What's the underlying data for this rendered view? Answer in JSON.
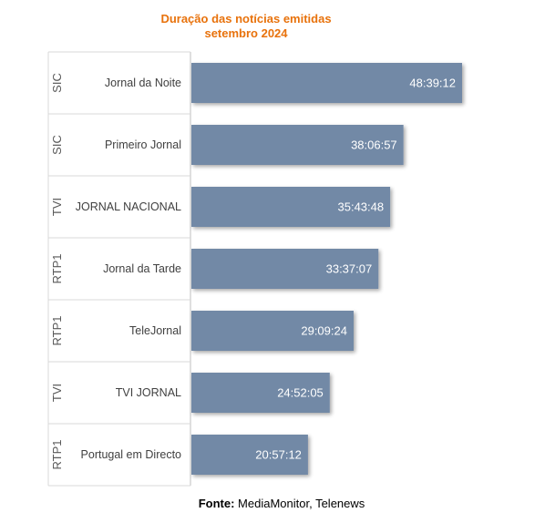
{
  "chart_data": {
    "type": "bar",
    "orientation": "horizontal",
    "title": [
      "Duração das notícias emitidas",
      "setembro 2024"
    ],
    "groups": [
      "SIC",
      "SIC",
      "TVI",
      "RTP1",
      "RTP1",
      "TVI",
      "RTP1"
    ],
    "categories": [
      "Jornal da Noite",
      "Primeiro Jornal",
      "JORNAL NACIONAL",
      "Jornal da Tarde",
      "TeleJornal",
      "TVI JORNAL",
      "Portugal em Directo"
    ],
    "values": [
      "48:39:12",
      "38:06:57",
      "35:43:48",
      "33:37:07",
      "29:09:24",
      "24:52:05",
      "20:57:12"
    ],
    "value_unit": "hh:mm:ss",
    "bar_color": "#7289a6",
    "label_color": "#ffffff",
    "title_color": "#e8720c"
  },
  "source": {
    "label": "Fonte:",
    "text": "MediaMonitor, Telenews"
  }
}
